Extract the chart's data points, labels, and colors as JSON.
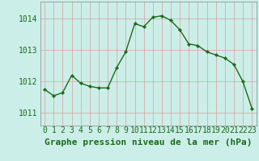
{
  "x": [
    0,
    1,
    2,
    3,
    4,
    5,
    6,
    7,
    8,
    9,
    10,
    11,
    12,
    13,
    14,
    15,
    16,
    17,
    18,
    19,
    20,
    21,
    22,
    23
  ],
  "y": [
    1011.75,
    1011.55,
    1011.65,
    1012.2,
    1011.95,
    1011.85,
    1011.8,
    1011.8,
    1012.45,
    1012.95,
    1013.85,
    1013.75,
    1014.05,
    1014.1,
    1013.95,
    1013.65,
    1013.2,
    1013.15,
    1012.95,
    1012.85,
    1012.75,
    1012.55,
    1012.0,
    1011.15
  ],
  "line_color": "#1a6b1a",
  "marker_color": "#1a6b1a",
  "bg_color": "#cceee8",
  "grid_color_v": "#d4a0a0",
  "grid_color_h": "#d4a0a0",
  "xlabel": "Graphe pression niveau de la mer (hPa)",
  "xlabel_color": "#1a6b1a",
  "ylabel_ticks": [
    1011,
    1012,
    1013,
    1014
  ],
  "ylim": [
    1010.6,
    1014.55
  ],
  "xlim": [
    -0.5,
    23.5
  ],
  "tick_label_color": "#1a6b1a",
  "xlabel_fontsize": 8,
  "tick_fontsize": 7
}
